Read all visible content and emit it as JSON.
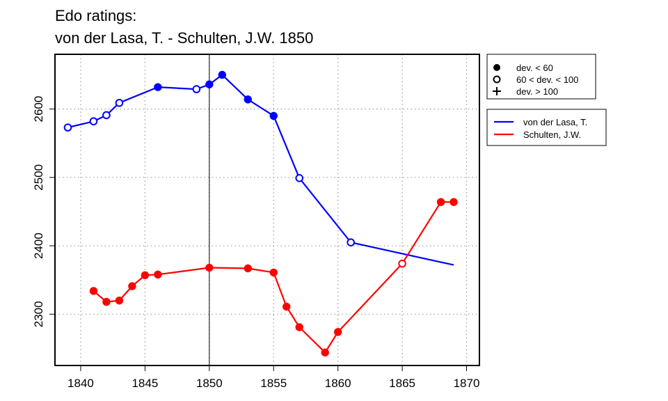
{
  "chart_data": {
    "type": "line",
    "title": [
      "Edo ratings:",
      "von der Lasa, T. - Schulten, J.W. 1850"
    ],
    "xlabel": "",
    "ylabel": "",
    "xlim": [
      1838,
      1871
    ],
    "ylim": [
      2225,
      2680
    ],
    "xticks": [
      1840,
      1845,
      1850,
      1855,
      1860,
      1865,
      1870
    ],
    "yticks": [
      2300,
      2400,
      2500,
      2600
    ],
    "grid": true,
    "reference_x": 1850,
    "deviation_legend": [
      {
        "marker": "filled",
        "label": "dev. < 60"
      },
      {
        "marker": "open",
        "label": "60 < dev. < 100"
      },
      {
        "marker": "plus",
        "label": "dev. > 100"
      }
    ],
    "series": [
      {
        "name": "von der Lasa, T.",
        "color": "#0000ff",
        "x": [
          1839,
          1841,
          1842,
          1843,
          1846,
          1849,
          1850,
          1851,
          1853,
          1855,
          1857,
          1861,
          1869
        ],
        "y": [
          2573,
          2582,
          2591,
          2609,
          2632,
          2629,
          2636,
          2650,
          2614,
          2590,
          2499,
          2405,
          2372
        ],
        "marker": [
          "open",
          "open",
          "open",
          "open",
          "filled",
          "open",
          "filled",
          "filled",
          "filled",
          "filled",
          "open",
          "open",
          "none"
        ]
      },
      {
        "name": "Schulten, J.W.",
        "color": "#ff0000",
        "x": [
          1841,
          1842,
          1843,
          1844,
          1845,
          1846,
          1850,
          1853,
          1855,
          1856,
          1857,
          1859,
          1860,
          1865,
          1868,
          1869
        ],
        "y": [
          2334,
          2318,
          2320,
          2341,
          2357,
          2358,
          2368,
          2367,
          2361,
          2311,
          2281,
          2244,
          2274,
          2374,
          2464,
          2464
        ],
        "marker": [
          "filled",
          "filled",
          "filled",
          "filled",
          "filled",
          "filled",
          "filled",
          "filled",
          "filled",
          "filled",
          "filled",
          "filled",
          "filled",
          "open",
          "filled",
          "filled"
        ]
      }
    ]
  }
}
